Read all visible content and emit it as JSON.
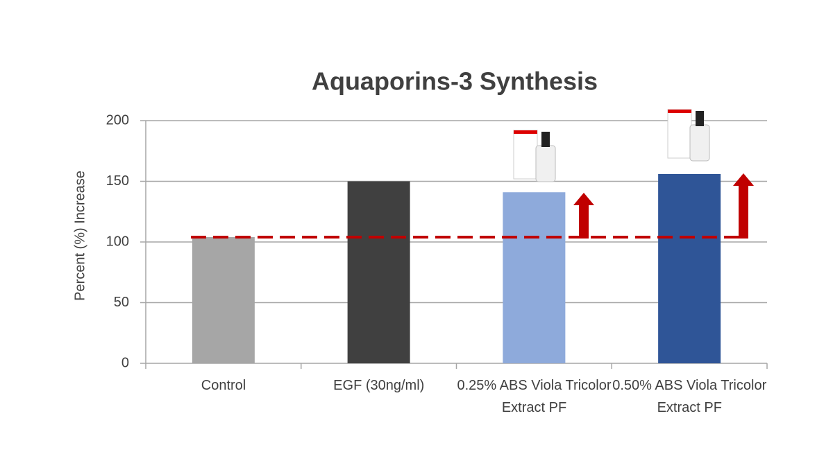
{
  "chart_data": {
    "type": "bar",
    "title": "Aquaporins-3 Synthesis",
    "y_label": "Percent (%) Increase",
    "categories": [
      "Control",
      "EGF (30ng/ml)",
      "0.25% ABS Viola Tricolor Extract PF",
      "0.50% ABS Viola Tricolor Extract PF"
    ],
    "values": [
      104,
      150,
      141,
      156
    ],
    "colors": [
      "#a6a6a6",
      "#404040",
      "#8eaadb",
      "#2f5597"
    ],
    "ylim": [
      0,
      200
    ],
    "yticks": [
      0,
      50,
      100,
      150,
      200
    ],
    "grid": true
  }
}
